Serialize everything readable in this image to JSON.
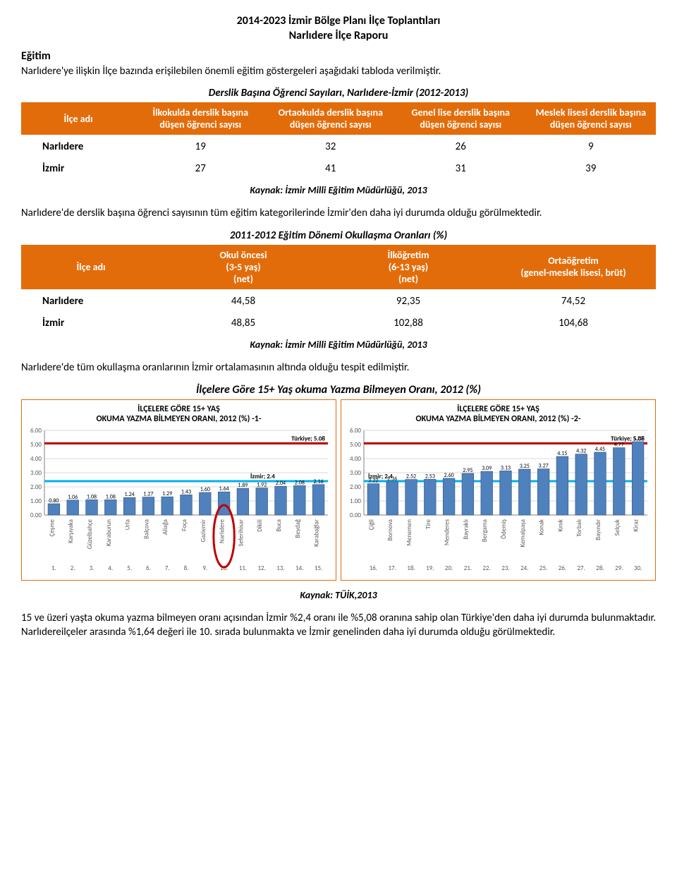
{
  "doc": {
    "title": "2014-2023 İzmir Bölge Planı İlçe Toplantıları",
    "subtitle": "Narlıdere İlçe Raporu",
    "section_heading": "Eğitim",
    "intro": "Narlıdere'ye ilişkin İlçe bazında erişilebilen önemli eğitim göstergeleri aşağıdaki tabloda verilmiştir."
  },
  "table1": {
    "title": "Derslik Başına Öğrenci Sayıları, Narlıdere-İzmir (2012-2013)",
    "columns": [
      "İlçe adı",
      "İlkokulda derslik başına düşen öğrenci sayısı",
      "Ortaokulda derslik başına düşen öğrenci sayısı",
      "Genel lise derslik başına düşen öğrenci sayısı",
      "Meslek lisesi derslik başına düşen öğrenci sayısı"
    ],
    "rows": [
      {
        "ilce": "Narlıdere",
        "v": [
          "19",
          "32",
          "26",
          "9"
        ]
      },
      {
        "ilce": "İzmir",
        "v": [
          "27",
          "41",
          "31",
          "39"
        ]
      }
    ],
    "source": "Kaynak: İzmir Milli Eğitim Müdürlüğü, 2013"
  },
  "para1": "Narlıdere'de derslik başına öğrenci sayısının tüm eğitim kategorilerinde İzmir'den daha iyi durumda olduğu görülmektedir.",
  "table2": {
    "title": "2011-2012 Eğitim Dönemi Okullaşma Oranları (%)",
    "columns": [
      "İlçe adı",
      "Okul öncesi\n(3-5 yaş)\n(net)",
      "İlköğretim\n(6-13 yaş)\n(net)",
      "Ortaöğretim\n(genel-meslek lisesi, brüt)"
    ],
    "rows": [
      {
        "ilce": "Narlıdere",
        "v": [
          "44,58",
          "92,35",
          "74,52"
        ]
      },
      {
        "ilce": "İzmir",
        "v": [
          "48,85",
          "102,88",
          "104,68"
        ]
      }
    ],
    "source": "Kaynak: İzmir Milli Eğitim Müdürlüğü, 2013"
  },
  "para2": "Narlıdere'de tüm okullaşma oranlarının İzmir ortalamasının altında olduğu tespit edilmiştir.",
  "charts": {
    "main_title": "İlçelere Göre 15+ Yaş okuma Yazma Bilmeyen Oranı, 2012 (%)",
    "source": "Kaynak: TÜİK,2013",
    "ylim": [
      0,
      6
    ],
    "ytick_step": 1,
    "bar_color": "#4f81bd",
    "bar_edge": "#385d8a",
    "grid_color": "#d9d9d9",
    "axis_color": "#808080",
    "turkiye_line_color": "#c00000",
    "izmir_line_color": "#00b0f0",
    "turkiye_value": 5.08,
    "izmir_value": 2.4,
    "turkiye_label": "Türkiye; 5.08",
    "izmir_label": "İzmir; 2.4",
    "highlight_circle_color": "#c00000",
    "left": {
      "title1": "İLÇELERE GÖRE 15+ YAŞ",
      "title2": "OKUMA YAZMA BİLMEYEN ORANI, 2012 (%) -1-",
      "highlight_index": 9,
      "bars": [
        {
          "n": "1.",
          "label": "Çeşme",
          "v": 0.8
        },
        {
          "n": "2.",
          "label": "Karşıyaka",
          "v": 1.06
        },
        {
          "n": "3.",
          "label": "Güzelbahçe",
          "v": 1.08
        },
        {
          "n": "4.",
          "label": "Karaburun",
          "v": 1.08
        },
        {
          "n": "5.",
          "label": "Urla",
          "v": 1.24
        },
        {
          "n": "6.",
          "label": "Balçova",
          "v": 1.27
        },
        {
          "n": "7.",
          "label": "Aliağa",
          "v": 1.29
        },
        {
          "n": "8.",
          "label": "Foça",
          "v": 1.43
        },
        {
          "n": "9.",
          "label": "Gaziemir",
          "v": 1.6
        },
        {
          "n": "10.",
          "label": "Narlıdere",
          "v": 1.64
        },
        {
          "n": "11.",
          "label": "Seferihisar",
          "v": 1.89
        },
        {
          "n": "12.",
          "label": "Dikili",
          "v": 1.92
        },
        {
          "n": "13.",
          "label": "Buca",
          "v": 2.04
        },
        {
          "n": "14.",
          "label": "Beydağ",
          "v": 2.08
        },
        {
          "n": "15.",
          "label": "Karabağlar",
          "v": 2.16
        }
      ]
    },
    "right": {
      "title1": "İLÇELERE GÖRE 15+ YAŞ",
      "title2": "OKUMA YAZMA BİLMEYEN ORANI, 2012 (%) -2-",
      "bars": [
        {
          "n": "16.",
          "label": "Çiğli",
          "v": 2.22
        },
        {
          "n": "17.",
          "label": "Bornova",
          "v": 2.36
        },
        {
          "n": "18.",
          "label": "Menemen",
          "v": 2.52
        },
        {
          "n": "19.",
          "label": "Tire",
          "v": 2.53
        },
        {
          "n": "20.",
          "label": "Menderes",
          "v": 2.6
        },
        {
          "n": "21.",
          "label": "Bayraklı",
          "v": 2.95
        },
        {
          "n": "22.",
          "label": "Bergama",
          "v": 3.09
        },
        {
          "n": "23.",
          "label": "Ödemiş",
          "v": 3.13
        },
        {
          "n": "24.",
          "label": "Kemalpaşa",
          "v": 3.25
        },
        {
          "n": "25.",
          "label": "Konak",
          "v": 3.27
        },
        {
          "n": "26.",
          "label": "Kınık",
          "v": 4.15
        },
        {
          "n": "27.",
          "label": "Torbalı",
          "v": 4.32
        },
        {
          "n": "28.",
          "label": "Bayındır",
          "v": 4.45
        },
        {
          "n": "29.",
          "label": "Selçuk",
          "v": 4.77
        },
        {
          "n": "30.",
          "label": "Kiraz",
          "v": 5.2
        }
      ]
    }
  },
  "para3": "15 ve üzeri yaşta okuma yazma bilmeyen oranı açısından İzmir %2,4 oranı ile %5,08 oranına sahip olan Türkiye'den daha iyi durumda bulunmaktadır. Narlıdereilçeler arasında %1,64 değeri ile 10. sırada bulunmakta ve İzmir genelinden daha iyi durumda olduğu görülmektedir."
}
